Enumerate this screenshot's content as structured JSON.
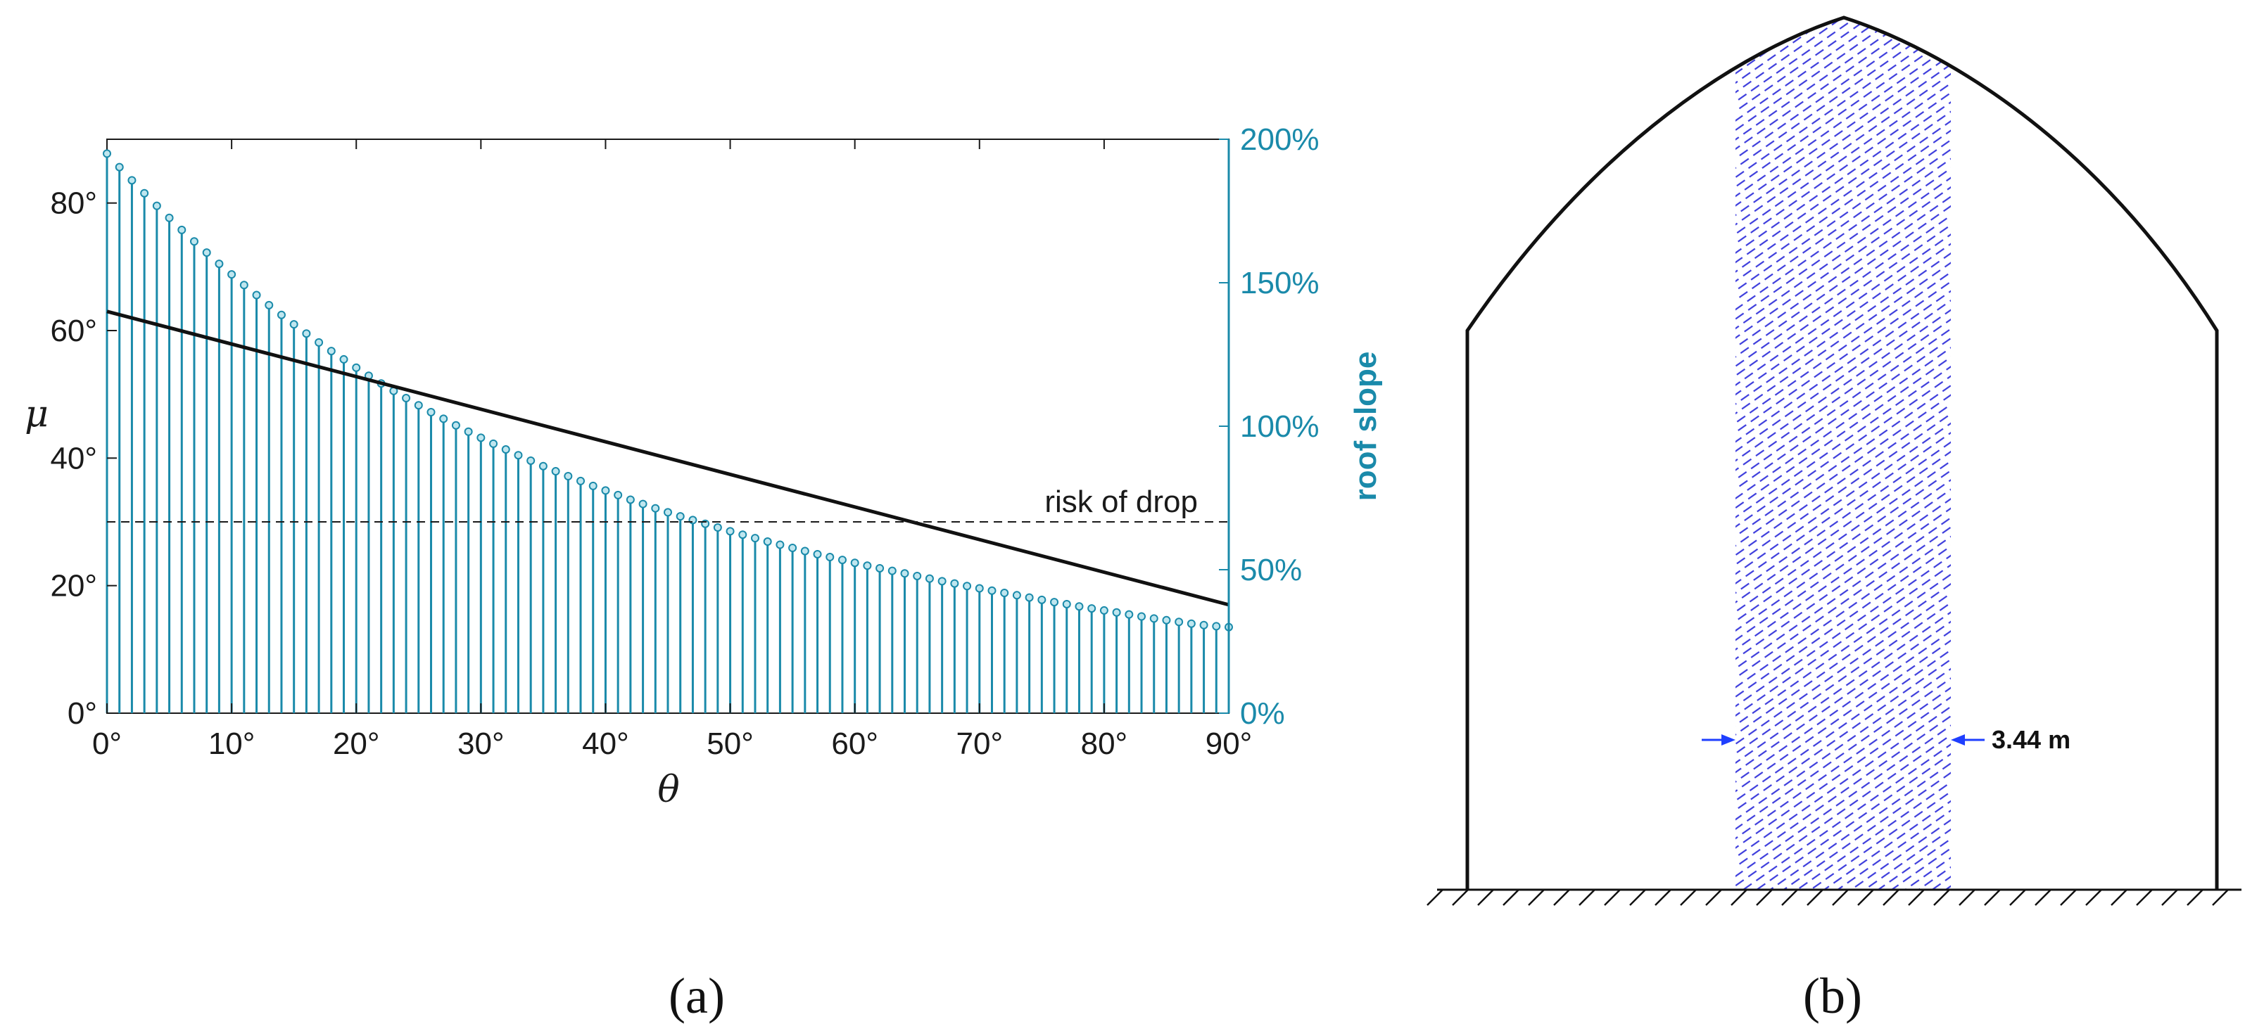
{
  "chart_data": [
    {
      "type": "stem",
      "panel": "(a)",
      "xlabel": "θ",
      "ylabel": "μ",
      "y2label": "roof slope",
      "xlim": [
        0,
        90
      ],
      "ylim": [
        0,
        90
      ],
      "y2lim": [
        0,
        200
      ],
      "x_ticks": [
        "0°",
        "10°",
        "20°",
        "30°",
        "40°",
        "50°",
        "60°",
        "70°",
        "80°",
        "90°"
      ],
      "y_ticks": [
        "0°",
        "20°",
        "40°",
        "60°",
        "80°"
      ],
      "y2_ticks": [
        "0%",
        "50%",
        "100%",
        "150%",
        "200%"
      ],
      "series": [
        {
          "name": "roof slope",
          "axis": "right",
          "style": "stem",
          "x": [
            0,
            1,
            2,
            3,
            4,
            5,
            6,
            7,
            8,
            9,
            10,
            11,
            12,
            13,
            14,
            15,
            16,
            17,
            18,
            19,
            20,
            21,
            22,
            23,
            24,
            25,
            26,
            27,
            28,
            29,
            30,
            31,
            32,
            33,
            34,
            35,
            36,
            37,
            38,
            39,
            40,
            41,
            42,
            43,
            44,
            45,
            46,
            47,
            48,
            49,
            50,
            51,
            52,
            53,
            54,
            55,
            56,
            57,
            58,
            59,
            60,
            61,
            62,
            63,
            64,
            65,
            66,
            67,
            68,
            69,
            70,
            71,
            72,
            73,
            74,
            75,
            76,
            77,
            78,
            79,
            80,
            81,
            82,
            83,
            84,
            85,
            86,
            87,
            88,
            89,
            90
          ],
          "values": [
            195.0,
            190.3,
            185.7,
            181.2,
            176.8,
            172.6,
            168.4,
            164.4,
            160.5,
            156.6,
            152.9,
            149.2,
            145.7,
            142.2,
            138.8,
            135.5,
            132.3,
            129.2,
            126.2,
            123.3,
            120.4,
            117.6,
            114.9,
            112.3,
            109.8,
            107.3,
            104.9,
            102.6,
            100.3,
            98.1,
            96.0,
            93.9,
            91.9,
            89.9,
            88.0,
            86.1,
            84.3,
            82.6,
            80.9,
            79.2,
            77.6,
            76.0,
            74.4,
            72.9,
            71.4,
            70.0,
            68.6,
            67.3,
            66.0,
            64.7,
            63.4,
            62.2,
            61.0,
            59.8,
            58.7,
            57.6,
            56.5,
            55.4,
            54.4,
            53.4,
            52.4,
            51.4,
            50.5,
            49.6,
            48.7,
            47.8,
            46.9,
            46.0,
            45.2,
            44.3,
            43.5,
            42.7,
            41.9,
            41.1,
            40.3,
            39.5,
            38.7,
            38.0,
            37.2,
            36.5,
            35.8,
            35.1,
            34.4,
            33.7,
            33.0,
            32.4,
            31.8,
            31.2,
            30.7,
            30.3,
            30.0
          ]
        },
        {
          "name": "μ",
          "axis": "left",
          "style": "line",
          "x": [
            0,
            90
          ],
          "values": [
            63,
            17
          ]
        },
        {
          "name": "risk of drop",
          "axis": "left",
          "style": "dashed",
          "x": [
            0,
            90
          ],
          "values": [
            30,
            30
          ]
        }
      ],
      "annotations": [
        {
          "text": "risk of drop"
        }
      ]
    },
    {
      "type": "diagram",
      "panel": "(b)",
      "dimension_label": "3.44 m"
    }
  ],
  "colors": {
    "stem": "#1a8aaa",
    "marker_face": "#bfe6ef",
    "line": "#111111",
    "hatch": "#3c3cdc",
    "arrow": "#1f3fff"
  }
}
